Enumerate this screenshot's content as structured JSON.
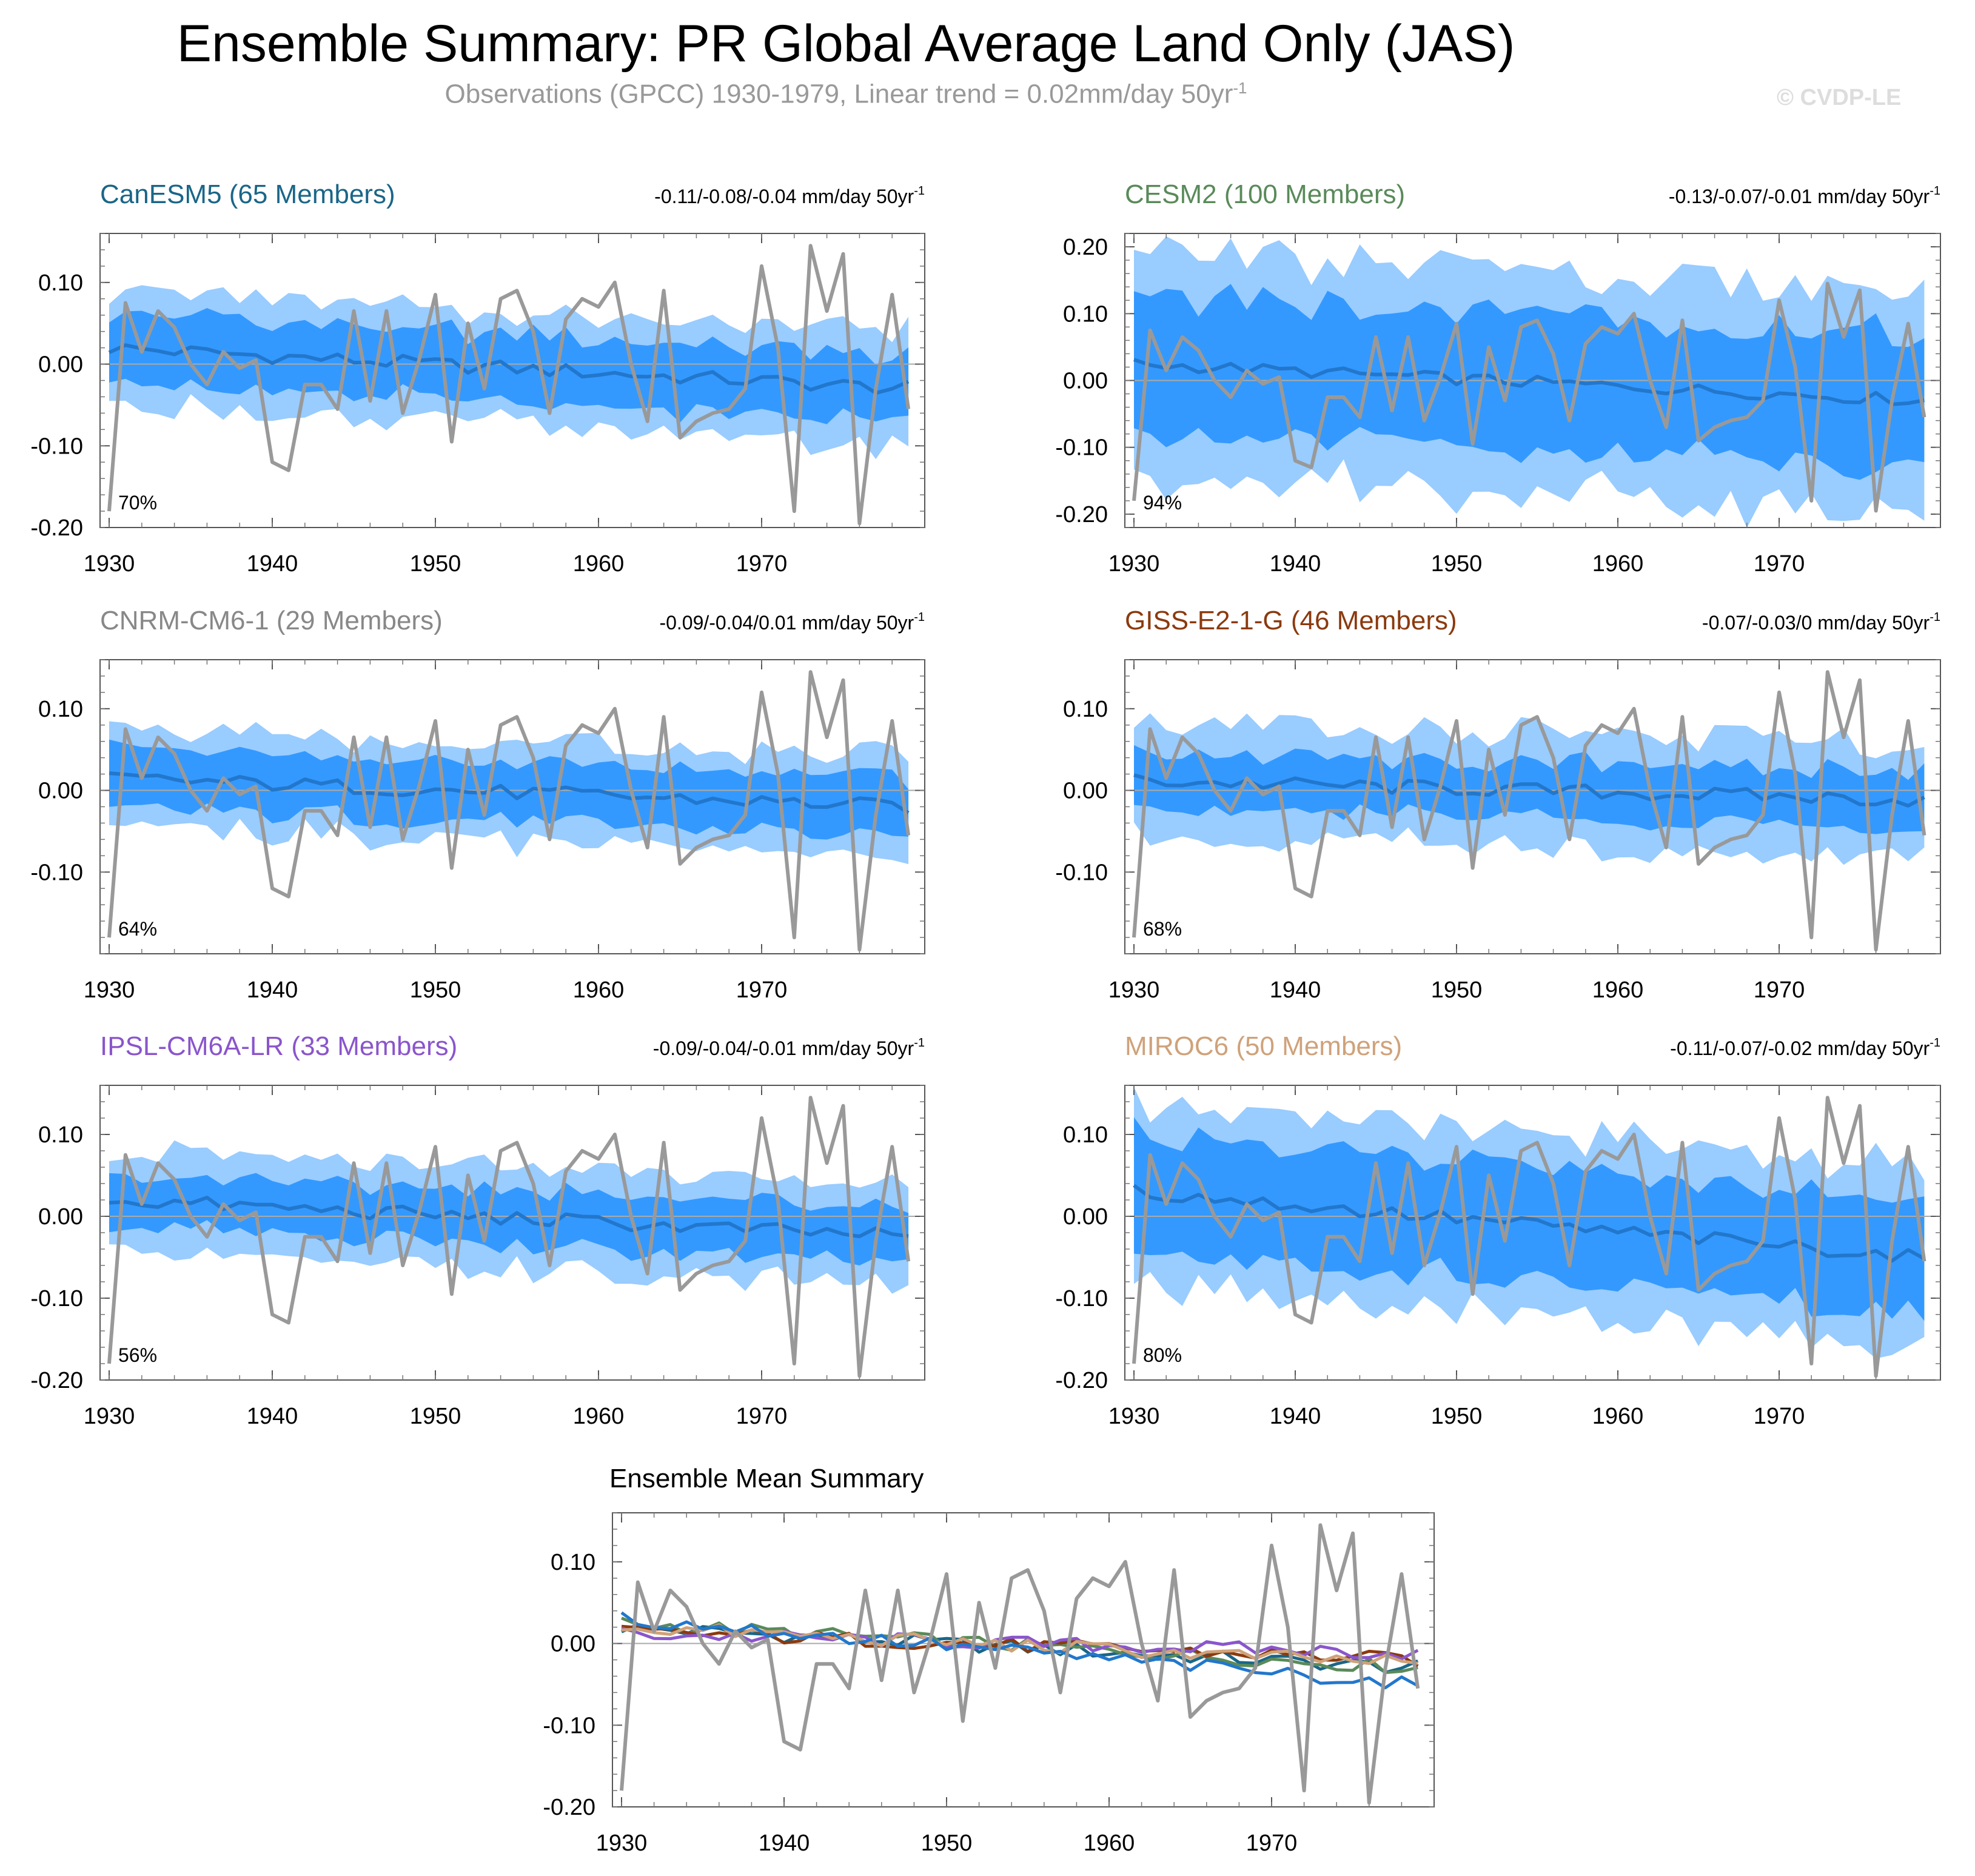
{
  "header": {
    "title": "Ensemble Summary: PR Global Average Land Only (JAS)",
    "subtitle_prefix": "Observations (GPCC) 1930-1979, Linear trend = 0.02mm/day 50yr",
    "subtitle_sup": "-1",
    "watermark": "© CVDP-LE"
  },
  "chart_data": {
    "type": "line",
    "years": [
      1930,
      1931,
      1932,
      1933,
      1934,
      1935,
      1936,
      1937,
      1938,
      1939,
      1940,
      1941,
      1942,
      1943,
      1944,
      1945,
      1946,
      1947,
      1948,
      1949,
      1950,
      1951,
      1952,
      1953,
      1954,
      1955,
      1956,
      1957,
      1958,
      1959,
      1960,
      1961,
      1962,
      1963,
      1964,
      1965,
      1966,
      1967,
      1968,
      1969,
      1970,
      1971,
      1972,
      1973,
      1974,
      1975,
      1976,
      1977,
      1978,
      1979
    ],
    "xticks": [
      1930,
      1940,
      1950,
      1960,
      1970
    ],
    "observations": [
      -0.18,
      0.075,
      0.015,
      0.065,
      0.045,
      0.0,
      -0.025,
      0.015,
      -0.005,
      0.005,
      -0.12,
      -0.13,
      -0.025,
      -0.025,
      -0.055,
      0.065,
      -0.045,
      0.065,
      -0.06,
      0.005,
      0.085,
      -0.095,
      0.05,
      -0.03,
      0.08,
      0.09,
      0.04,
      -0.06,
      0.055,
      0.08,
      0.07,
      0.1,
      0.0,
      -0.07,
      0.09,
      -0.09,
      -0.07,
      -0.06,
      -0.055,
      -0.03,
      0.12,
      0.02,
      -0.18,
      0.145,
      0.065,
      0.135,
      -0.195,
      -0.03,
      0.085,
      -0.055
    ],
    "obs_color": "#999999",
    "band_colors": {
      "outer": "#99ccff",
      "inner": "#3399ff",
      "mean": "#2277cc"
    },
    "panels": [
      {
        "title": "CanESM5 (65 Members)",
        "title_color": "#1a6688",
        "trend": "-0.11/-0.08/-0.04 mm/day 50yr",
        "trend_sup": "-1",
        "pct": "70%",
        "ylim": [
          -0.2,
          0.16
        ],
        "yticks": [
          -0.2,
          -0.1,
          0.0,
          0.1
        ],
        "ytick_labels": [
          "-0.20",
          "-0.10",
          "0.00",
          "0.10"
        ],
        "mean_start": 0.02,
        "mean_end": -0.03,
        "inner_half": 0.042,
        "outer_half": 0.068
      },
      {
        "title": "CESM2 (100 Members)",
        "title_color": "#5a8a5a",
        "trend": "-0.13/-0.07/-0.01 mm/day 50yr",
        "trend_sup": "-1",
        "pct": "94%",
        "ylim": [
          -0.22,
          0.22
        ],
        "yticks": [
          -0.2,
          -0.1,
          0.0,
          0.1,
          0.2
        ],
        "ytick_labels": [
          "-0.20",
          "-0.10",
          "0.00",
          "0.10",
          "0.20"
        ],
        "mean_start": 0.025,
        "mean_end": -0.03,
        "inner_half": 0.1,
        "outer_half": 0.165
      },
      {
        "title": "CNRM-CM6-1 (29 Members)",
        "title_color": "#888888",
        "trend": "-0.09/-0.04/0.01 mm/day 50yr",
        "trend_sup": "-1",
        "pct": "64%",
        "ylim": [
          -0.2,
          0.16
        ],
        "yticks": [
          -0.1,
          0.0,
          0.1
        ],
        "ytick_labels": [
          "-0.10",
          "0.00",
          "0.10"
        ],
        "mean_start": 0.015,
        "mean_end": -0.02,
        "inner_half": 0.035,
        "outer_half": 0.06
      },
      {
        "title": "GISS-E2-1-G (46 Members)",
        "title_color": "#8b3a0e",
        "trend": "-0.07/-0.03/0 mm/day 50yr",
        "trend_sup": "-1",
        "pct": "68%",
        "ylim": [
          -0.2,
          0.16
        ],
        "yticks": [
          -0.1,
          0.0,
          0.1
        ],
        "ytick_labels": [
          "-0.10",
          "0.00",
          "0.10"
        ],
        "mean_start": 0.012,
        "mean_end": -0.012,
        "inner_half": 0.035,
        "outer_half": 0.07
      },
      {
        "title": "IPSL-CM6A-LR (33 Members)",
        "title_color": "#8a55cc",
        "trend": "-0.09/-0.04/-0.01 mm/day 50yr",
        "trend_sup": "-1",
        "pct": "56%",
        "ylim": [
          -0.2,
          0.16
        ],
        "yticks": [
          -0.2,
          -0.1,
          0.0,
          0.1
        ],
        "ytick_labels": [
          "-0.20",
          "-0.10",
          "0.00",
          "0.10"
        ],
        "mean_start": 0.02,
        "mean_end": -0.025,
        "inner_half": 0.033,
        "outer_half": 0.062
      },
      {
        "title": "MIROC6 (50 Members)",
        "title_color": "#cfa27a",
        "trend": "-0.11/-0.07/-0.02 mm/day 50yr",
        "trend_sup": "-1",
        "pct": "80%",
        "ylim": [
          -0.2,
          0.16
        ],
        "yticks": [
          -0.2,
          -0.1,
          0.0,
          0.1
        ],
        "ytick_labels": [
          "-0.20",
          "-0.10",
          "0.00",
          "0.10"
        ],
        "mean_start": 0.03,
        "mean_end": -0.05,
        "inner_half": 0.07,
        "outer_half": 0.11
      }
    ],
    "mean_summary": {
      "title": "Ensemble Mean Summary",
      "ylim": [
        -0.2,
        0.16
      ],
      "yticks": [
        -0.2,
        -0.1,
        0.0,
        0.1
      ],
      "ytick_labels": [
        "-0.20",
        "-0.10",
        "0.00",
        "0.10"
      ],
      "series_colors": [
        "#1a6688",
        "#5a8a5a",
        "#8b3a0e",
        "#8a55cc",
        "#cfa27a"
      ]
    }
  }
}
